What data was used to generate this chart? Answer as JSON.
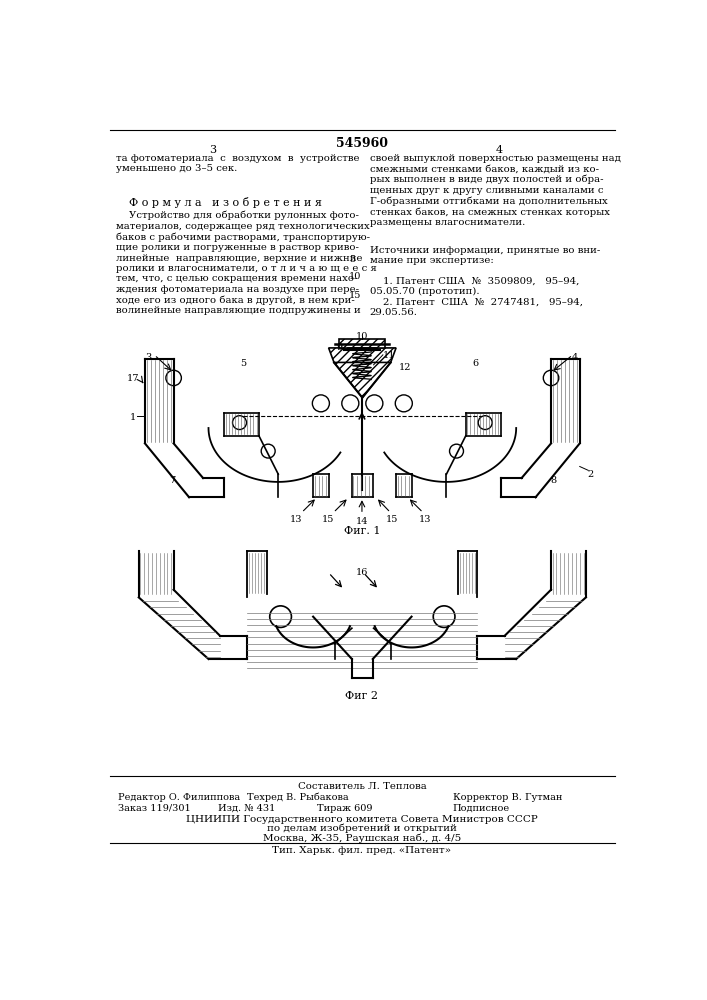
{
  "patent_number": "545960",
  "page_left": "3",
  "page_right": "4",
  "top_left_text": "та фотоматериала  с  воздухом  в  устройстве\nуменьшено до 3–5 сек.",
  "top_right_text": "своей выпуклой поверхностью размещены над\nсмежными стенками баков, каждый из ко-\nрых выполнен в виде двух полостей и обра-\nщенных друг к другу сливными каналами с\nГ-образными отгибками на дополнительных\nстенках баков, на смежных стенках которых\nразмещены влагосниматели.",
  "section_title": "Ф о р м у л а   и з о б р е т е н и я",
  "left_body_text": "    Устройство для обработки рулонных фото-\nматериалов, содержащее ряд технологических\nбаков с рабочими растворами, транспортирую-\nщие ролики и погруженные в раствор криво-\nлинейные  направляющие, верхние и нижние\nролики и влагосниматели, о т л и ч а ю щ е е с я\nтем, что, с целью сокращения времени нахо-\nждения фотоматериала на воздухе при пере-\nходе его из одного бака в другой, в нем кри-\nволинейные направляющие подпружинены и",
  "right_body_text": "Источники информации, принятые во вни-\nмание при экспертизе:\n\n    1. Патент США  №  3509809,   95–94,\n05.05.70 (прототип).\n    2. Патент  США  №  2747481,   95–94,\n29.05.56.",
  "line_number_5": "5",
  "line_number_10": "10",
  "line_number_15": "15",
  "fig1_label": "Фиг. 1",
  "fig2_label": "Фиг 2",
  "bottom_composer": "Составитель Л. Теплова",
  "bottom_editor": "Редактор О. Филиппова",
  "bottom_tech": "Техред В. Рыбакова",
  "bottom_corrector": "Корректор В. Гутман",
  "bottom_order": "Заказ 119/301",
  "bottom_izdanie": "Изд. № 431",
  "bottom_tirazh": "Тираж 609",
  "bottom_podpisnoe": "Подписное",
  "bottom_tsniipi": "ЦНИИПИ Государственного комитета Совета Министров СССР",
  "bottom_po_delam": "по делам изобретений и открытий",
  "bottom_moscow": "Москва, Ж-35, Раушская наб., д. 4/5",
  "bottom_tip": "Тип. Харьк. фил. пред. «Патент»",
  "bg_color": "#ffffff",
  "text_color": "#000000"
}
